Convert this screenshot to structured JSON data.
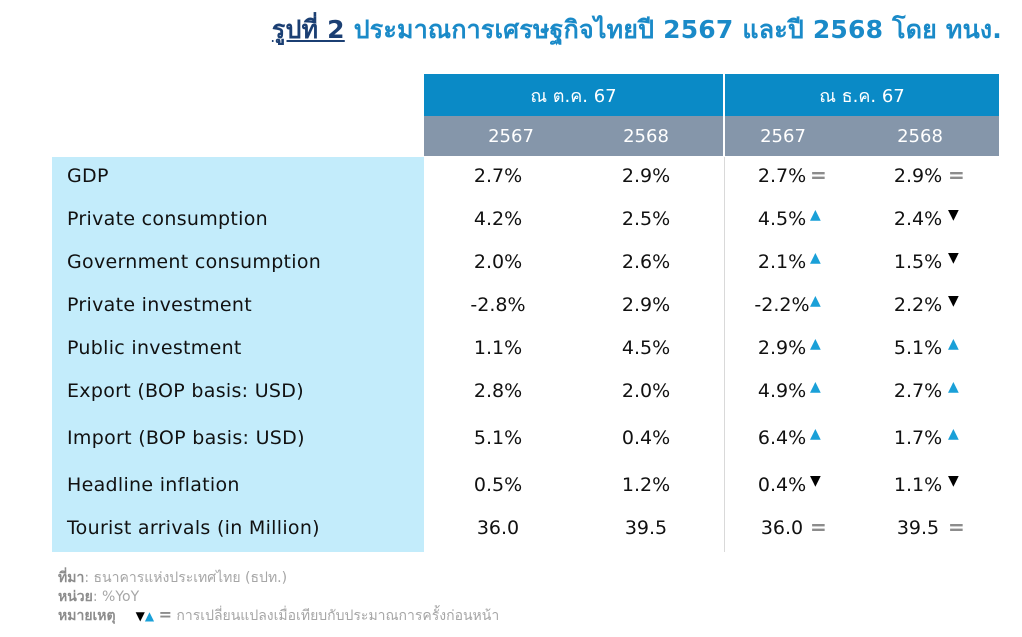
{
  "title": {
    "prefix": "รูปที่ 2",
    "text": "ประมาณการเศรษฐกิจไทยปี 2567 และปี 2568 โดย ทนง."
  },
  "table": {
    "groups": [
      "ณ ต.ค. 67",
      "ณ ธ.ค. 67"
    ],
    "years": [
      "2567",
      "2568",
      "2567",
      "2568"
    ],
    "rows": [
      {
        "label": "GDP",
        "oct_2567": "2.7%",
        "oct_2568": "2.9%",
        "dec_2567": "2.7%",
        "dec_2567_change": "eq",
        "dec_2568": "2.9%",
        "dec_2568_change": "eq"
      },
      {
        "label": "Private consumption",
        "oct_2567": "4.2%",
        "oct_2568": "2.5%",
        "dec_2567": "4.5%",
        "dec_2567_change": "up",
        "dec_2568": "2.4%",
        "dec_2568_change": "down"
      },
      {
        "label": "Government consumption",
        "oct_2567": "2.0%",
        "oct_2568": "2.6%",
        "dec_2567": "2.1%",
        "dec_2567_change": "up",
        "dec_2568": "1.5%",
        "dec_2568_change": "down"
      },
      {
        "label": "Private investment",
        "oct_2567": "-2.8%",
        "oct_2568": "2.9%",
        "dec_2567": "-2.2%",
        "dec_2567_change": "up",
        "dec_2568": "2.2%",
        "dec_2568_change": "down"
      },
      {
        "label": "Public investment",
        "oct_2567": "1.1%",
        "oct_2568": "4.5%",
        "dec_2567": "2.9%",
        "dec_2567_change": "up",
        "dec_2568": "5.1%",
        "dec_2568_change": "up"
      },
      {
        "label": "Export (BOP basis: USD)",
        "oct_2567": "2.8%",
        "oct_2568": "2.0%",
        "dec_2567": "4.9%",
        "dec_2567_change": "up",
        "dec_2568": "2.7%",
        "dec_2568_change": "up"
      },
      {
        "label": "Import (BOP basis: USD)",
        "oct_2567": "5.1%",
        "oct_2568": "0.4%",
        "dec_2567": "6.4%",
        "dec_2567_change": "up",
        "dec_2568": "1.7%",
        "dec_2568_change": "up"
      },
      {
        "label": "Headline inflation",
        "oct_2567": "0.5%",
        "oct_2568": "1.2%",
        "dec_2567": "0.4%",
        "dec_2567_change": "down",
        "dec_2568": "1.1%",
        "dec_2568_change": "down"
      },
      {
        "label": "Tourist arrivals (in Million)",
        "oct_2567": "36.0",
        "oct_2568": "39.5",
        "dec_2567": "36.0",
        "dec_2567_change": "eq",
        "dec_2568": "39.5",
        "dec_2568_change": "eq"
      }
    ]
  },
  "indicator_glyphs": {
    "up": "▲",
    "down": "▼",
    "eq": "="
  },
  "colors": {
    "header_blue": "#0a8ac6",
    "header_gray": "#8596aa",
    "label_bg": "#c3ecfb",
    "title_blue": "#1a8ac8",
    "up": "#1aa0d8",
    "down": "#000000",
    "eq": "#8c8c8c"
  },
  "footer": {
    "source_label": "ที่มา",
    "source_text": ": ธนาคารแห่งประเทศไทย (ธปท.)",
    "unit_label": "หน่วย",
    "unit_text": ": %YoY",
    "note_label": "หมายเหตุ",
    "note_text": "การเปลี่ยนแปลงเมื่อเทียบกับประมาณการครั้งก่อนหน้า"
  }
}
